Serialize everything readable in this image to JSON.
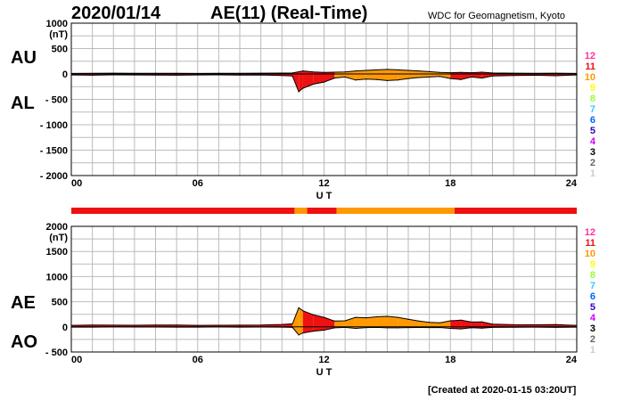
{
  "header": {
    "date": "2020/01/14",
    "title": "AE(11) (Real-Time)",
    "credit": "WDC for Geomagnetism, Kyoto"
  },
  "footer": {
    "created": "[Created at 2020-01-15 03:20UT]"
  },
  "colors": {
    "level_12": "#ff3399",
    "level_11": "#ee1111",
    "level_10": "#ff9900",
    "level_9": "#ffff00",
    "level_8": "#99ff33",
    "level_7": "#33ccff",
    "level_6": "#0066ff",
    "level_5": "#3300cc",
    "level_4": "#cc00ff",
    "level_3": "#000000",
    "level_2": "#666666",
    "level_1": "#cccccc",
    "grid": "#bbbbbb"
  },
  "chart_data": [
    {
      "type": "area",
      "panel": "AU/AL",
      "side_labels": [
        "AU",
        "AL"
      ],
      "y_unit": "(nT)",
      "ylim": [
        -2000,
        1000
      ],
      "yticks": [
        1000,
        500,
        0,
        -500,
        -1000,
        -1500,
        -2000
      ],
      "ytick_labels": [
        "1000",
        "500",
        "0",
        "- 500",
        "- 1000",
        "- 1500",
        "- 2000"
      ],
      "xlim": [
        0,
        24
      ],
      "xticks": [
        0,
        6,
        12,
        18,
        24
      ],
      "xtick_labels": [
        "00",
        "06",
        "12",
        "18",
        "24"
      ],
      "xlabel": "U T",
      "grid": true,
      "stations_levels": [
        "12",
        "11",
        "10",
        "9",
        "8",
        "7",
        "6",
        "5",
        "4",
        "3",
        "2",
        "1"
      ],
      "series": [
        {
          "name": "AU",
          "x": [
            0,
            1,
            2,
            3,
            4,
            5,
            6,
            7,
            8,
            9,
            10,
            10.5,
            11,
            11.5,
            12,
            12.5,
            13,
            13.5,
            14,
            14.5,
            15,
            15.5,
            16,
            16.5,
            17,
            17.5,
            18,
            18.5,
            19,
            19.5,
            20,
            21,
            22,
            23,
            24
          ],
          "values": [
            10,
            12,
            15,
            12,
            14,
            12,
            10,
            14,
            12,
            15,
            18,
            20,
            60,
            40,
            30,
            35,
            40,
            60,
            70,
            80,
            90,
            80,
            70,
            60,
            45,
            30,
            25,
            30,
            25,
            35,
            20,
            15,
            12,
            15,
            10
          ]
        },
        {
          "name": "AL",
          "x": [
            0,
            1,
            2,
            3,
            4,
            5,
            6,
            7,
            8,
            9,
            10,
            10.5,
            10.8,
            11,
            11.5,
            12,
            12.5,
            13,
            13.5,
            14,
            14.5,
            15,
            15.5,
            16,
            16.5,
            17,
            17.5,
            18,
            18.5,
            19,
            19.5,
            20,
            21,
            22,
            23,
            24
          ],
          "values": [
            -20,
            -25,
            -18,
            -20,
            -22,
            -25,
            -20,
            -18,
            -22,
            -20,
            -30,
            -40,
            -350,
            -280,
            -200,
            -160,
            -80,
            -60,
            -120,
            -100,
            -110,
            -130,
            -120,
            -90,
            -70,
            -60,
            -50,
            -90,
            -110,
            -60,
            -80,
            -40,
            -30,
            -25,
            -35,
            -20
          ]
        }
      ]
    },
    {
      "type": "area",
      "panel": "AE/AO",
      "side_labels": [
        "AE",
        "AO"
      ],
      "y_unit": "(nT)",
      "ylim": [
        -500,
        2000
      ],
      "yticks": [
        2000,
        1500,
        1000,
        500,
        0,
        -500
      ],
      "ytick_labels": [
        "2000",
        "1500",
        "1000",
        "500",
        "0",
        "- 500"
      ],
      "xlim": [
        0,
        24
      ],
      "xticks": [
        0,
        6,
        12,
        18,
        24
      ],
      "xtick_labels": [
        "00",
        "06",
        "12",
        "18",
        "24"
      ],
      "xlabel": "U T",
      "grid": true,
      "stations_levels": [
        "12",
        "11",
        "10",
        "9",
        "8",
        "7",
        "6",
        "5",
        "4",
        "3",
        "2",
        "1"
      ],
      "series": [
        {
          "name": "AE",
          "x": [
            0,
            1,
            2,
            3,
            4,
            5,
            6,
            7,
            8,
            9,
            10,
            10.5,
            10.8,
            11,
            11.5,
            12,
            12.5,
            13,
            13.5,
            14,
            14.5,
            15,
            15.5,
            16,
            16.5,
            17,
            17.5,
            18,
            18.5,
            19,
            19.5,
            20,
            21,
            22,
            23,
            24
          ],
          "values": [
            30,
            35,
            33,
            32,
            36,
            37,
            30,
            32,
            34,
            35,
            48,
            60,
            380,
            320,
            240,
            190,
            115,
            120,
            190,
            180,
            200,
            210,
            190,
            150,
            115,
            90,
            80,
            120,
            135,
            95,
            100,
            55,
            42,
            40,
            45,
            30
          ]
        },
        {
          "name": "AO",
          "x": [
            0,
            1,
            2,
            3,
            4,
            5,
            6,
            7,
            8,
            9,
            10,
            10.5,
            10.8,
            11,
            11.5,
            12,
            12.5,
            13,
            13.5,
            14,
            14.5,
            15,
            15.5,
            16,
            16.5,
            17,
            17.5,
            18,
            18.5,
            19,
            19.5,
            20,
            21,
            22,
            23,
            24
          ],
          "values": [
            -5,
            -6,
            -2,
            -4,
            -4,
            -6,
            -5,
            -2,
            -5,
            -3,
            -6,
            -10,
            -160,
            -120,
            -85,
            -65,
            -20,
            -10,
            -30,
            -15,
            -10,
            -20,
            -20,
            -15,
            -12,
            -15,
            -12,
            -30,
            -40,
            -18,
            -25,
            -10,
            -8,
            -5,
            -10,
            -5
          ]
        }
      ],
      "activity_bar": [
        {
          "from": 0,
          "to": 10.6,
          "level": "11"
        },
        {
          "from": 10.6,
          "to": 11.2,
          "level": "10"
        },
        {
          "from": 11.2,
          "to": 12.6,
          "level": "11"
        },
        {
          "from": 12.6,
          "to": 18.2,
          "level": "10"
        },
        {
          "from": 18.2,
          "to": 24,
          "level": "11"
        }
      ]
    }
  ]
}
